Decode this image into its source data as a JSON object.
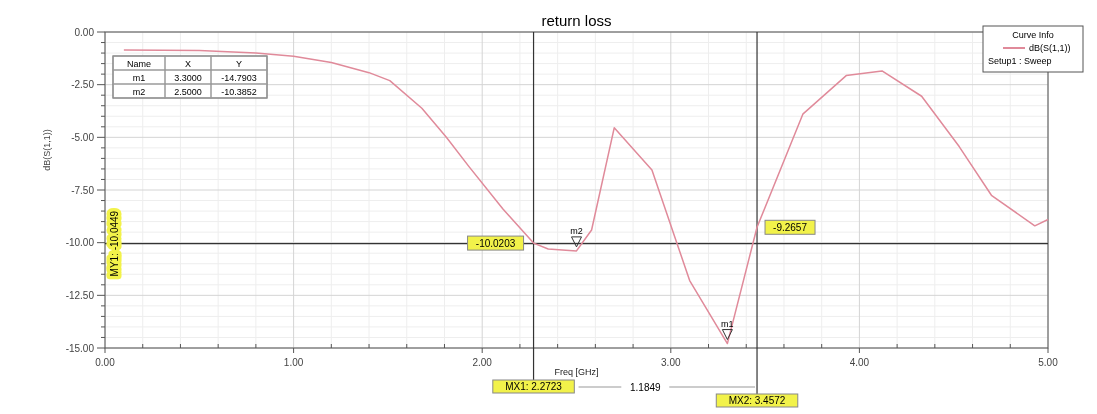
{
  "chart_data": {
    "type": "line",
    "title": "return loss",
    "xlabel": "Freq [GHz]",
    "ylabel": "dB(S(1,1))",
    "legend_title": "Curve Info",
    "x": [
      0.1,
      0.5,
      0.8,
      1.0,
      1.2,
      1.4,
      1.51,
      1.68,
      1.81,
      1.93,
      2.11,
      2.2723,
      2.35,
      2.5,
      2.58,
      2.7,
      2.9,
      3.1,
      3.3,
      3.4572,
      3.7,
      3.93,
      4.12,
      4.33,
      4.53,
      4.7,
      4.93,
      5.0
    ],
    "series": [
      {
        "name": "dB(S(1,1))",
        "color": "#e08a9a",
        "values": [
          -0.85,
          -0.88,
          -1.0,
          -1.15,
          -1.45,
          -1.93,
          -2.31,
          -3.62,
          -5.0,
          -6.39,
          -8.4,
          -10.02,
          -10.3,
          -10.39,
          -9.4,
          -4.55,
          -6.55,
          -11.8,
          -14.79,
          -9.27,
          -3.9,
          -2.07,
          -1.85,
          -3.05,
          -5.45,
          -7.75,
          -9.2,
          -8.9
        ]
      }
    ],
    "xlim": [
      0,
      5
    ],
    "xticks": [
      {
        "value": 0,
        "label": "0.00"
      },
      {
        "value": 1,
        "label": "1.00"
      },
      {
        "value": 2,
        "label": "2.00"
      },
      {
        "value": 3,
        "label": "3.00"
      },
      {
        "value": 4,
        "label": "4.00"
      },
      {
        "value": 5,
        "label": "5.00"
      }
    ],
    "ylim": [
      -15,
      0
    ],
    "yticks": [
      {
        "value": 0,
        "label": "0.00"
      },
      {
        "value": -2.5,
        "label": "-2.50"
      },
      {
        "value": -5,
        "label": "-5.00"
      },
      {
        "value": -7.5,
        "label": "-7.50"
      },
      {
        "value": -10,
        "label": "-10.00"
      },
      {
        "value": -12.5,
        "label": "-12.50"
      },
      {
        "value": -15,
        "label": "-15.00"
      }
    ],
    "grid": true,
    "legend": "top right",
    "marker": "none",
    "line_style": "solid",
    "ref_lines": [
      {
        "axis": "x",
        "value": 2.2723,
        "label": "MX1: 2.2723",
        "color": "#333333"
      },
      {
        "axis": "x",
        "value": 3.4572,
        "label": "MX2: 3.4572",
        "color": "#333333"
      },
      {
        "axis": "y",
        "value": -10.0449,
        "label": "MY1: -10.0449",
        "color": "#333333"
      }
    ],
    "annotations": [
      "Name",
      "X",
      "Y",
      "m1",
      "3.3000",
      "-14.7903",
      "m2",
      "2.5000",
      "-10.3852",
      "Setup1 : Sweep",
      "1.1849",
      {
        "text": "m1",
        "x": 3.3,
        "y": -14.79
      },
      {
        "text": "m2",
        "x": 2.5,
        "y": -10.39
      },
      {
        "text": "-10.0203",
        "x": 2.2723,
        "y": -10.02
      },
      {
        "text": "-9.2657",
        "x": 3.4572,
        "y": -9.27
      }
    ]
  }
}
